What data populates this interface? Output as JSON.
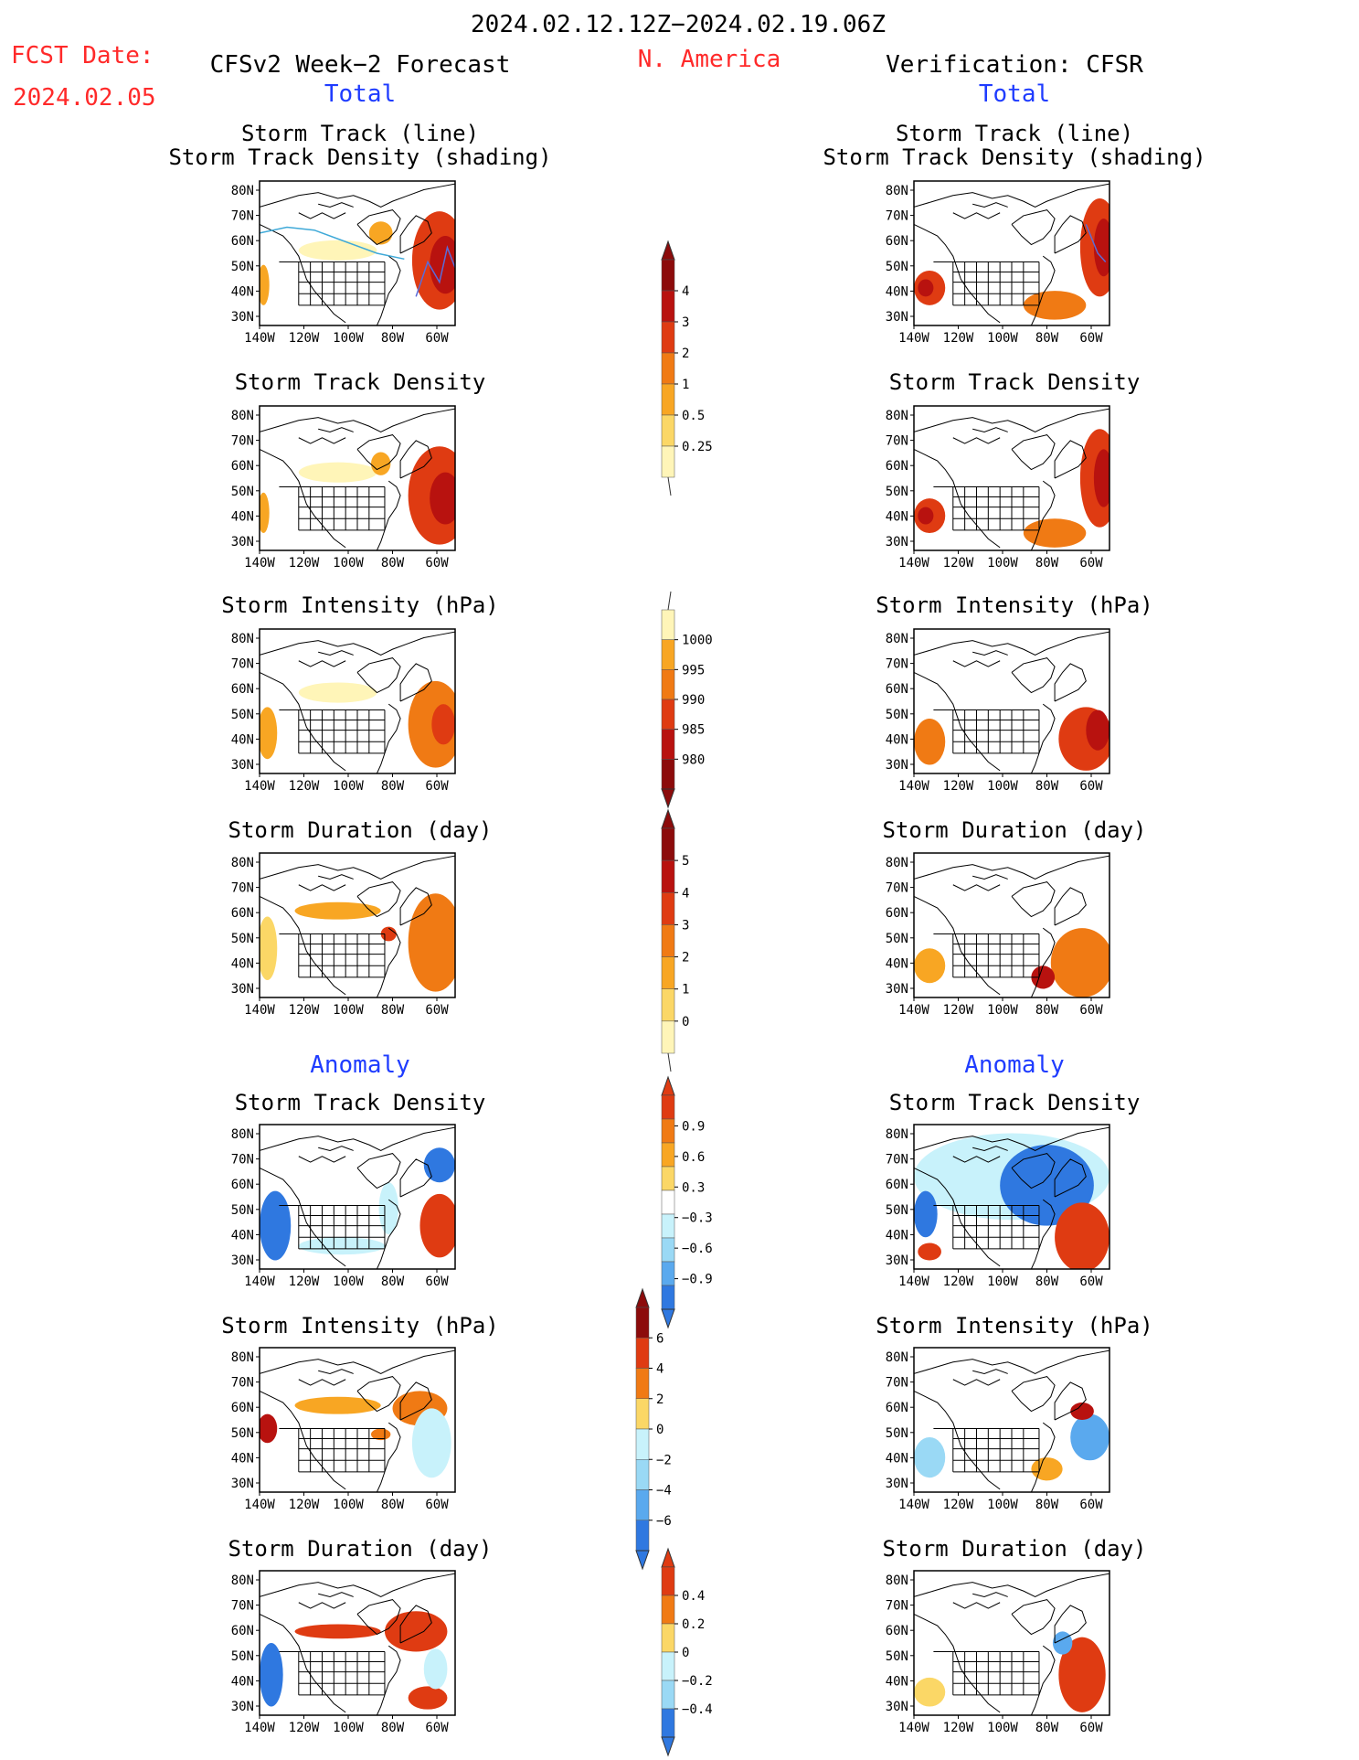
{
  "header": {
    "period": "2024.02.12.12Z−2024.02.19.06Z",
    "fcst_label": "FCST Date:",
    "fcst_date": "2024.02.05",
    "region": "N. America",
    "left_title": "CFSv2 Week−2 Forecast",
    "right_title": "Verification: CFSR",
    "total_label": "Total",
    "anomaly_label": "Anomaly"
  },
  "axes": {
    "lat_ticks": [
      "80N",
      "70N",
      "60N",
      "50N",
      "40N",
      "30N"
    ],
    "lon_ticks": [
      "140W",
      "120W",
      "100W",
      "80W",
      "60W"
    ]
  },
  "panels": {
    "track_line_title": "Storm Track (line)",
    "track_shade_title": "Storm Track Density (shading)",
    "density_title": "Storm Track Density",
    "intensity_title": "Storm Intensity (hPa)",
    "duration_title": "Storm Duration (day)"
  },
  "colorbars": {
    "density": [
      "4",
      "3",
      "2",
      "1",
      "0.5",
      "0.25"
    ],
    "intensity": [
      "1000",
      "995",
      "990",
      "985",
      "980"
    ],
    "duration": [
      "5",
      "4",
      "3",
      "2",
      "1",
      "0"
    ],
    "anom_density": [
      "0.9",
      "0.6",
      "0.3",
      "−0.3",
      "−0.6",
      "−0.9"
    ],
    "anom_intensity": [
      "6",
      "4",
      "2",
      "0",
      "−2",
      "−4",
      "−6"
    ],
    "anom_duration": [
      "0.4",
      "0.2",
      "0",
      "−0.2",
      "−0.4"
    ]
  },
  "colors": {
    "warm": [
      "#fff5b8",
      "#fbd766",
      "#f8a623",
      "#f07a14",
      "#df3b12",
      "#b8120f",
      "#8c0b0b"
    ],
    "cool": [
      "#c8f2fb",
      "#9ad9f5",
      "#5aa9ee",
      "#2f78e0",
      "#1a4fc8"
    ],
    "coast": "#000000",
    "track_line": "#3fa9d8"
  }
}
